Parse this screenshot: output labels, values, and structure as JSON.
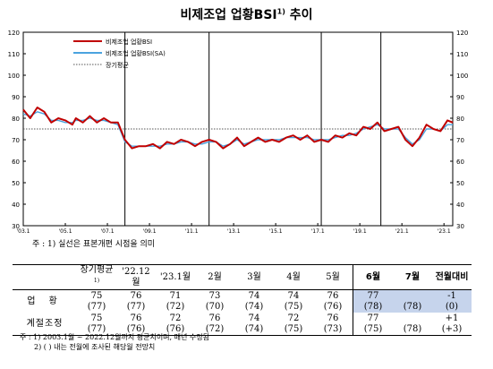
{
  "title": "비제조업 업황BSI",
  "title_sup": "1)",
  "chart_data": {
    "type": "line",
    "y_ticks": [
      30,
      40,
      50,
      60,
      70,
      80,
      90,
      100,
      110,
      120
    ],
    "ylim": [
      30,
      120
    ],
    "x_labels": [
      "'03.1",
      "'05.1",
      "'07.1",
      "'09.1",
      "'11.1",
      "'13.1",
      "'15.1",
      "'17.1",
      "'19.1",
      "'21.1",
      "'23.1"
    ],
    "x_label_months": [
      0,
      24,
      48,
      72,
      96,
      120,
      144,
      168,
      192,
      216,
      240
    ],
    "x_range_months": [
      0,
      245
    ],
    "recession_lines_months": [
      58,
      106,
      170,
      204
    ],
    "long_term_average": 75,
    "legend": [
      {
        "name": "비제조업 업황BSI",
        "color": "#c00000",
        "style": "solid"
      },
      {
        "name": "비제조업 업황BSI(SA)",
        "color": "#4aa3df",
        "style": "solid"
      },
      {
        "name": "장기평균",
        "color": "#555555",
        "style": "dotted"
      }
    ],
    "series": [
      {
        "name": "비제조업 업황BSI",
        "color": "#c00000",
        "points": [
          [
            0,
            84
          ],
          [
            4,
            80
          ],
          [
            8,
            85
          ],
          [
            12,
            83
          ],
          [
            16,
            78
          ],
          [
            20,
            80
          ],
          [
            24,
            79
          ],
          [
            28,
            77
          ],
          [
            30,
            80
          ],
          [
            34,
            78
          ],
          [
            38,
            81
          ],
          [
            42,
            78
          ],
          [
            46,
            80
          ],
          [
            50,
            78
          ],
          [
            54,
            78
          ],
          [
            58,
            70
          ],
          [
            62,
            66
          ],
          [
            66,
            67
          ],
          [
            70,
            67
          ],
          [
            74,
            68
          ],
          [
            78,
            66
          ],
          [
            82,
            69
          ],
          [
            86,
            68
          ],
          [
            90,
            70
          ],
          [
            94,
            69
          ],
          [
            98,
            67
          ],
          [
            102,
            69
          ],
          [
            106,
            70
          ],
          [
            110,
            69
          ],
          [
            114,
            66
          ],
          [
            118,
            68
          ],
          [
            122,
            71
          ],
          [
            126,
            67
          ],
          [
            130,
            69
          ],
          [
            134,
            71
          ],
          [
            138,
            69
          ],
          [
            142,
            70
          ],
          [
            146,
            69
          ],
          [
            150,
            71
          ],
          [
            154,
            72
          ],
          [
            158,
            70
          ],
          [
            162,
            72
          ],
          [
            166,
            69
          ],
          [
            170,
            70
          ],
          [
            174,
            69
          ],
          [
            178,
            72
          ],
          [
            182,
            71
          ],
          [
            186,
            73
          ],
          [
            190,
            72
          ],
          [
            194,
            76
          ],
          [
            198,
            75
          ],
          [
            202,
            78
          ],
          [
            206,
            74
          ],
          [
            210,
            75
          ],
          [
            214,
            76
          ],
          [
            218,
            70
          ],
          [
            222,
            67
          ],
          [
            226,
            71
          ],
          [
            230,
            77
          ],
          [
            234,
            75
          ],
          [
            238,
            74
          ],
          [
            242,
            79
          ],
          [
            245,
            78
          ]
        ]
      },
      {
        "name": "비제조업 업황BSI(SA)",
        "color": "#4aa3df",
        "points": [
          [
            0,
            82
          ],
          [
            4,
            81
          ],
          [
            8,
            83
          ],
          [
            12,
            82
          ],
          [
            16,
            79
          ],
          [
            20,
            79
          ],
          [
            24,
            78
          ],
          [
            28,
            78
          ],
          [
            30,
            79
          ],
          [
            34,
            79
          ],
          [
            38,
            80
          ],
          [
            42,
            79
          ],
          [
            46,
            79
          ],
          [
            50,
            78
          ],
          [
            54,
            77
          ],
          [
            58,
            69
          ],
          [
            62,
            67
          ],
          [
            66,
            67
          ],
          [
            70,
            67
          ],
          [
            74,
            67
          ],
          [
            78,
            67
          ],
          [
            82,
            68
          ],
          [
            86,
            68
          ],
          [
            90,
            69
          ],
          [
            94,
            69
          ],
          [
            98,
            68
          ],
          [
            102,
            68
          ],
          [
            106,
            69
          ],
          [
            110,
            69
          ],
          [
            114,
            67
          ],
          [
            118,
            68
          ],
          [
            122,
            70
          ],
          [
            126,
            68
          ],
          [
            130,
            69
          ],
          [
            134,
            70
          ],
          [
            138,
            70
          ],
          [
            142,
            70
          ],
          [
            146,
            70
          ],
          [
            150,
            71
          ],
          [
            154,
            71
          ],
          [
            158,
            71
          ],
          [
            162,
            71
          ],
          [
            166,
            70
          ],
          [
            170,
            70
          ],
          [
            174,
            70
          ],
          [
            178,
            71
          ],
          [
            182,
            72
          ],
          [
            186,
            72
          ],
          [
            190,
            73
          ],
          [
            194,
            75
          ],
          [
            198,
            76
          ],
          [
            202,
            77
          ],
          [
            206,
            75
          ],
          [
            210,
            75
          ],
          [
            214,
            75
          ],
          [
            218,
            71
          ],
          [
            222,
            68
          ],
          [
            226,
            70
          ],
          [
            230,
            75
          ],
          [
            234,
            75
          ],
          [
            238,
            74
          ],
          [
            242,
            77
          ],
          [
            245,
            77
          ]
        ]
      }
    ]
  },
  "chart_note": "주 : 1) 실선은 표본개편 시점을 의미",
  "table": {
    "headers": [
      {
        "label": "장기평균",
        "sup": "1)",
        "hl": false
      },
      {
        "label": "'22.12월",
        "hl": false
      },
      {
        "label": "'23.1월",
        "hl": false
      },
      {
        "label": "2월",
        "hl": false
      },
      {
        "label": "3월",
        "hl": false
      },
      {
        "label": "4월",
        "hl": false
      },
      {
        "label": "5월",
        "hl": false
      },
      {
        "label": "6월",
        "hl": true
      },
      {
        "label": "7월",
        "hl": true
      },
      {
        "label": "전월대비",
        "hl": true
      }
    ],
    "rows": [
      {
        "label": "업 황",
        "sa": false,
        "top": [
          "75",
          "76",
          "71",
          "73",
          "74",
          "74",
          "76",
          "77",
          "",
          "-1"
        ],
        "bottom": [
          "(77)",
          "(77)",
          "(72)",
          "(70)",
          "(74)",
          "(75)",
          "(76)",
          "(78)",
          "(78)",
          "(0)"
        ]
      },
      {
        "label": "계절조정",
        "sa": true,
        "top": [
          "75",
          "76",
          "72",
          "76",
          "74",
          "72",
          "76",
          "77",
          "",
          "+1"
        ],
        "bottom": [
          "(77)",
          "(76)",
          "(76)",
          "(72)",
          "(74)",
          "(75)",
          "(73)",
          "(75)",
          "(78)",
          "(+3)"
        ]
      }
    ]
  },
  "footnotes": [
    "주 : 1) 2003.1월 ~ 2022.12월까지 평균치이며, 매년 수정됨",
    "2) (   ) 내는 전월에 조사된 해당월 전망치"
  ]
}
